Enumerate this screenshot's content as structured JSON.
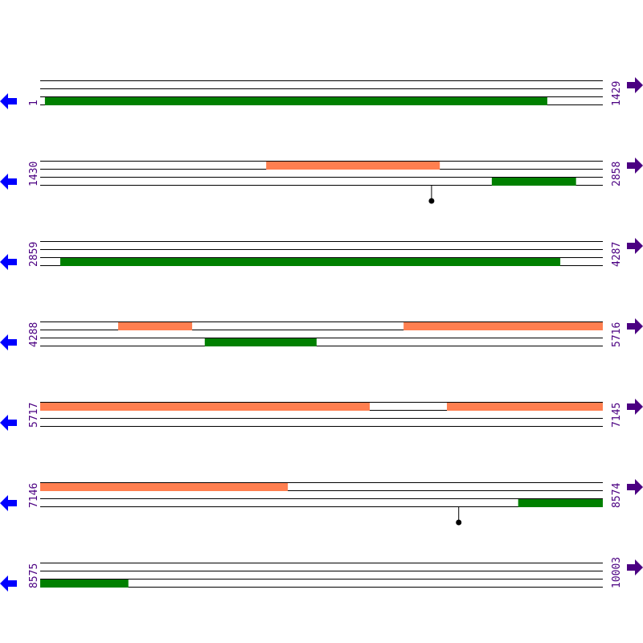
{
  "sequence": {
    "start": 1,
    "end": 10003,
    "bp_per_row": 1429
  },
  "rows": [
    {
      "start_label": "1",
      "end_label": "1429"
    },
    {
      "start_label": "1430",
      "end_label": "2858"
    },
    {
      "start_label": "2859",
      "end_label": "4287"
    },
    {
      "start_label": "4288",
      "end_label": "5716"
    },
    {
      "start_label": "5717",
      "end_label": "7145"
    },
    {
      "start_label": "7146",
      "end_label": "8574"
    },
    {
      "start_label": "8575",
      "end_label": "10003"
    }
  ],
  "features": [
    {
      "type": "green",
      "lane": 2,
      "start": 13,
      "end": 1289
    },
    {
      "type": "orange",
      "lane": 0,
      "start": 2004,
      "end": 2445
    },
    {
      "type": "green",
      "lane": 2,
      "start": 2577,
      "end": 2791
    },
    {
      "type": "green",
      "lane": 2,
      "start": 2910,
      "end": 4180
    },
    {
      "type": "orange",
      "lane": 0,
      "start": 4486,
      "end": 4674
    },
    {
      "type": "green",
      "lane": 2,
      "start": 4706,
      "end": 4990
    },
    {
      "type": "orange",
      "lane": 0,
      "start": 5211,
      "end": 6554
    },
    {
      "type": "orange",
      "lane": 0,
      "start": 6750,
      "end": 7775
    },
    {
      "type": "green",
      "lane": 2,
      "start": 8360,
      "end": 8799
    }
  ],
  "markers": [
    {
      "position": 2424
    },
    {
      "position": 8209
    }
  ],
  "colors": {
    "green": "#008000",
    "orange": "#ff7f50",
    "line": "#000000",
    "reverse_arrow": "#0000ff",
    "forward_arrow": "#4b0082",
    "label": "#4b0082"
  },
  "icons": {
    "left": "arrow-left-icon",
    "right": "arrow-right-icon"
  }
}
